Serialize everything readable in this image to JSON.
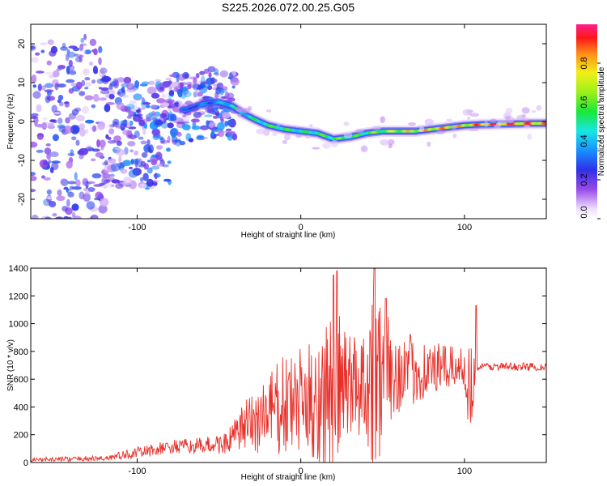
{
  "title": "S225.2026.072.00.25.G05",
  "chart_data": [
    {
      "type": "heatmap",
      "xlabel": "Height of straight line (km)",
      "ylabel": "Frequency (Hz)",
      "xlim": [
        -165,
        150
      ],
      "ylim": [
        -25,
        25
      ],
      "xticks": [
        -100,
        0,
        100
      ],
      "yticks": [
        -20,
        -10,
        0,
        10,
        20
      ],
      "colorbar": {
        "label": "Normalized spectral amplitude",
        "range": [
          0,
          1
        ],
        "ticks": [
          "0.0",
          "0.2",
          "0.4",
          "0.6",
          "0.8"
        ],
        "tick_values": [
          0,
          0.2,
          0.4,
          0.6,
          0.8
        ]
      },
      "ridge": {
        "x": [
          -70,
          -60,
          -50,
          -42,
          -35,
          -28,
          -20,
          -10,
          0,
          10,
          20,
          30,
          40,
          50,
          60,
          70,
          80,
          90,
          100,
          110,
          120,
          130,
          140,
          150
        ],
        "y": [
          3,
          4.5,
          5,
          4,
          2,
          0.5,
          -1,
          -2,
          -2.5,
          -3,
          -4.5,
          -4,
          -3,
          -2.5,
          -2.5,
          -2.5,
          -2,
          -1.5,
          -1,
          -0.8,
          -0.7,
          -0.6,
          -0.5,
          -0.5
        ],
        "amp": [
          0.3,
          0.35,
          0.4,
          0.55,
          0.5,
          0.55,
          0.6,
          0.62,
          0.55,
          0.6,
          0.65,
          0.6,
          0.62,
          0.7,
          0.8,
          0.85,
          0.88,
          0.9,
          0.85,
          0.97,
          0.98,
          0.97,
          0.95,
          0.9
        ]
      },
      "scatter_region": {
        "x": [
          -165,
          -40
        ],
        "y": [
          -25,
          25
        ],
        "amp_range": [
          0.05,
          0.35
        ]
      }
    },
    {
      "type": "line",
      "xlabel": "Height of straight line (km)",
      "ylabel": "SNR (10 * v/v)",
      "xlim": [
        -165,
        150
      ],
      "ylim": [
        0,
        1400
      ],
      "xticks": [
        -100,
        0,
        100
      ],
      "yticks": [
        0,
        200,
        400,
        600,
        800,
        1000,
        1200,
        1400
      ],
      "color": "#e8302a",
      "envelope": {
        "x": [
          -165,
          -120,
          -100,
          -80,
          -60,
          -45,
          -35,
          -25,
          -15,
          -5,
          5,
          15,
          20,
          25,
          30,
          40,
          45,
          50,
          55,
          60,
          70,
          80,
          90,
          100,
          103,
          107,
          110,
          120,
          130,
          140,
          150
        ],
        "base": [
          20,
          30,
          70,
          110,
          120,
          140,
          250,
          320,
          380,
          420,
          440,
          480,
          520,
          540,
          560,
          600,
          620,
          630,
          640,
          650,
          660,
          670,
          680,
          690,
          500,
          690,
          690,
          690,
          690,
          690,
          690
        ],
        "amp": [
          15,
          20,
          40,
          50,
          60,
          80,
          180,
          280,
          350,
          380,
          420,
          550,
          620,
          500,
          380,
          450,
          700,
          600,
          350,
          300,
          250,
          200,
          160,
          130,
          400,
          40,
          30,
          30,
          30,
          30,
          30
        ]
      },
      "peaks": [
        {
          "x": 20,
          "y": 1350
        },
        {
          "x": 22,
          "y": 1380
        },
        {
          "x": 45,
          "y": 1395
        },
        {
          "x": 52,
          "y": 1180
        },
        {
          "x": 107,
          "y": 1130
        }
      ]
    }
  ]
}
